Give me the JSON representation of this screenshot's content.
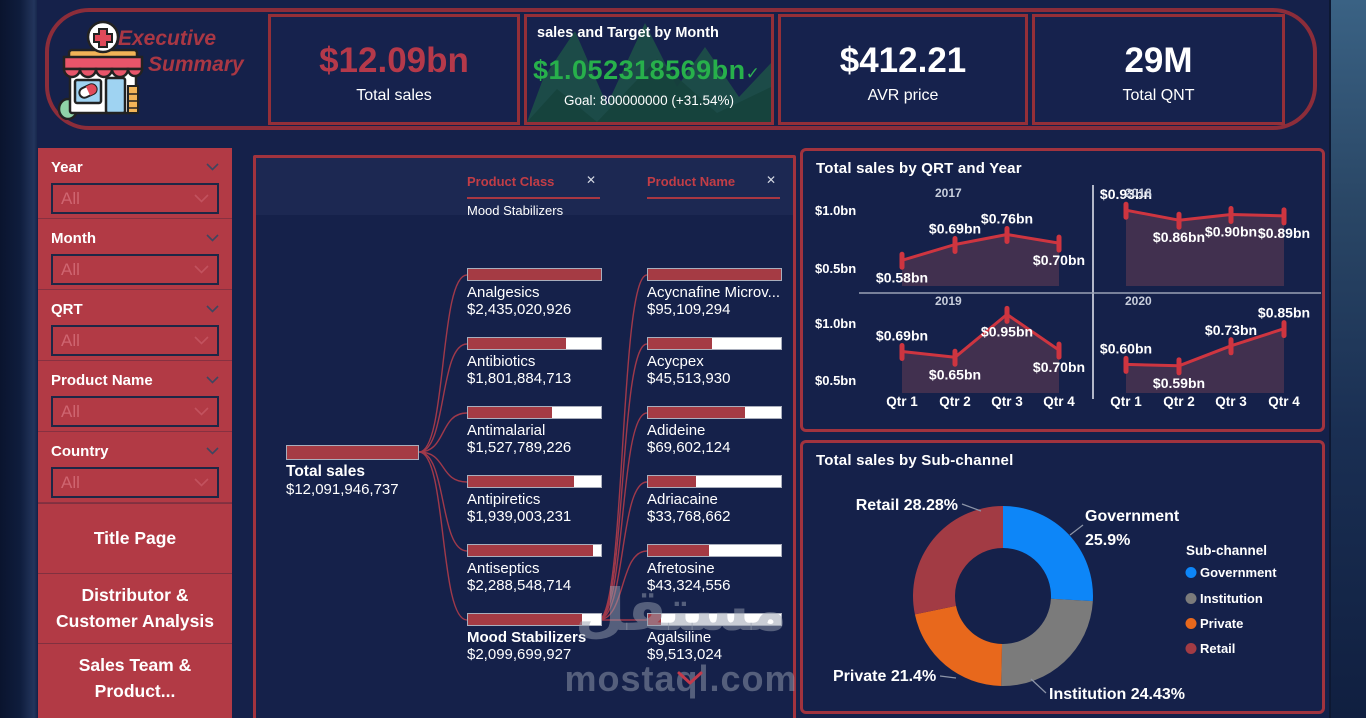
{
  "colors": {
    "background": "#15214a",
    "sidebar_red": "#b23a45",
    "panel_border": "#a1333e",
    "frame_border": "#8c2d3a",
    "kpi_red": "#b5394a",
    "kpi_green": "#27b04b",
    "bar_red": "#a53b44",
    "connector_red": "#a0394a",
    "line_red": "#ce3540",
    "area_fill": "#41304f",
    "band": "#1c2852",
    "watermark": "rgba(150,158,173,0.5)"
  },
  "header": {
    "logo": "pharmacy-store-icon",
    "title_line1": "Executive",
    "title_line2": "Summary",
    "kpis": [
      {
        "value": "$12.09bn",
        "label": "Total sales"
      },
      {
        "title": "sales and Target by Month",
        "value": "$1.052318569bn",
        "check": "✓",
        "goal": "Goal: 800000000 (+31.54%)"
      },
      {
        "value": "$412.21",
        "label": "AVR price"
      },
      {
        "value": "29M",
        "label": "Total QNT"
      }
    ]
  },
  "sidebar": {
    "filters": [
      {
        "label": "Year",
        "value": "All"
      },
      {
        "label": "Month",
        "value": "All"
      },
      {
        "label": "QRT",
        "value": "All"
      },
      {
        "label": "Product Name",
        "value": "All"
      },
      {
        "label": "Country",
        "value": "All"
      }
    ],
    "buttons": [
      {
        "label": "Title Page"
      },
      {
        "label": "Distributor & Customer Analysis"
      },
      {
        "label": "Sales Team & Product..."
      }
    ]
  },
  "tree": {
    "columns": [
      {
        "label": "Product Class",
        "close": "✕",
        "selected_value": "Mood Stabilizers"
      },
      {
        "label": "Product Name",
        "close": "✕"
      }
    ],
    "root": {
      "name": "Total sales",
      "value": "$12,091,946,737",
      "amount": 12091946737
    },
    "levels": [
      [
        {
          "name": "Analgesics",
          "value": "$2,435,020,926",
          "amount": 2435020926,
          "selected": false
        },
        {
          "name": "Antibiotics",
          "value": "$1,801,884,713",
          "amount": 1801884713,
          "selected": false
        },
        {
          "name": "Antimalarial",
          "value": "$1,527,789,226",
          "amount": 1527789226,
          "selected": false
        },
        {
          "name": "Antipiretics",
          "value": "$1,939,003,231",
          "amount": 1939003231,
          "selected": false
        },
        {
          "name": "Antiseptics",
          "value": "$2,288,548,714",
          "amount": 2288548714,
          "selected": false
        },
        {
          "name": "Mood Stabilizers",
          "value": "$2,099,699,927",
          "amount": 2099699927,
          "selected": true
        }
      ],
      [
        {
          "name": "Acycnafine Microv...",
          "value": "$95,109,294",
          "amount": 95109294,
          "selected": false
        },
        {
          "name": "Acycpex",
          "value": "$45,513,930",
          "amount": 45513930,
          "selected": false
        },
        {
          "name": "Adideine",
          "value": "$69,602,124",
          "amount": 69602124,
          "selected": false
        },
        {
          "name": "Adriacaine",
          "value": "$33,768,662",
          "amount": 33768662,
          "selected": false
        },
        {
          "name": "Afretosine",
          "value": "$43,324,556",
          "amount": 43324556,
          "selected": false
        },
        {
          "name": "Agalsiline",
          "value": "$9,513,024",
          "amount": 9513024,
          "selected": false
        }
      ]
    ]
  },
  "watermark": {
    "arabic": "مستقل",
    "domain": "mostaql.com"
  },
  "chart_data": [
    {
      "type": "line",
      "title": "Total sales by QRT and Year",
      "facets": [
        "2017",
        "2018",
        "2019",
        "2020"
      ],
      "categories": [
        "Qtr 1",
        "Qtr 2",
        "Qtr 3",
        "Qtr 4"
      ],
      "series": [
        {
          "name": "2017",
          "values": [
            0.58,
            0.69,
            0.76,
            0.7
          ],
          "label_pos": [
            "b",
            "a",
            "a",
            "b"
          ]
        },
        {
          "name": "2018",
          "values": [
            0.93,
            0.86,
            0.9,
            0.89
          ],
          "label_pos": [
            "a",
            "b",
            "b",
            "b"
          ]
        },
        {
          "name": "2019",
          "values": [
            0.69,
            0.65,
            0.95,
            0.7
          ],
          "label_pos": [
            "a",
            "b",
            "b",
            "b"
          ]
        },
        {
          "name": "2020",
          "values": [
            0.6,
            0.59,
            0.73,
            0.85
          ],
          "label_pos": [
            "a",
            "b",
            "a",
            "a"
          ]
        }
      ],
      "y_axis_labels": [
        "$1.0bn",
        "$0.5bn"
      ],
      "ylim": [
        0.4,
        1.05
      ],
      "unit": "$bn",
      "line_color": "#ce3540",
      "area_color": "#41304f",
      "grid": false,
      "legend": false
    },
    {
      "type": "donut",
      "title": "Total sales by Sub-channel",
      "categories": [
        "Government",
        "Institution",
        "Private",
        "Retail"
      ],
      "values": [
        25.9,
        24.43,
        21.4,
        28.28
      ],
      "labels": [
        "25.9%",
        "24.43%",
        "21.4%",
        "28.28%"
      ],
      "colors": [
        "#0d86f8",
        "#7b7b7b",
        "#e8681c",
        "#a23b44"
      ],
      "legend_title": "Sub-channel",
      "legend_position": "right"
    }
  ]
}
